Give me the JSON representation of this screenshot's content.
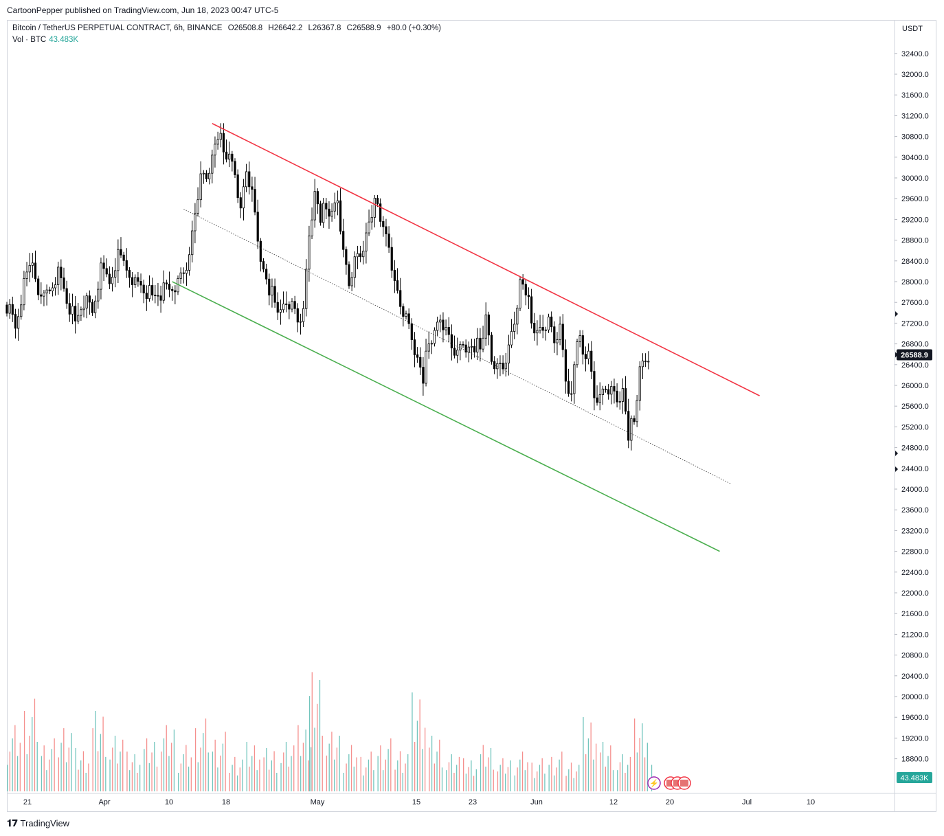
{
  "publisher_line": "CartoonPepper published on TradingView.com, Jun 18, 2023 00:47 UTC-5",
  "legend": {
    "symbol": "Bitcoin / TetherUS PERPETUAL CONTRACT, 6h, BINANCE",
    "open": "O26508.8",
    "high": "H26642.2",
    "low": "L26367.8",
    "close": "C26588.9",
    "change": "+80.0 (+0.30%)",
    "vol_label": "Vol · BTC",
    "vol_value": "43.483K"
  },
  "branding": "TradingView",
  "price_tag": "26588.9",
  "volume_tag": "43.483K",
  "currency": "USDT",
  "colors": {
    "upper_line": "#f23645",
    "lower_line": "#4caf50",
    "candle": "#000000",
    "vol_up": "#26a69a",
    "vol_down": "#ef5350"
  },
  "chart_data": {
    "type": "candlestick",
    "y_axis_ticks": [
      "32400.0",
      "32000.0",
      "31600.0",
      "31200.0",
      "30800.0",
      "30400.0",
      "30000.0",
      "29600.0",
      "29200.0",
      "28800.0",
      "28400.0",
      "28000.0",
      "27600.0",
      "27200.0",
      "26800.0",
      "26400.0",
      "26000.0",
      "25600.0",
      "25200.0",
      "24800.0",
      "24400.0",
      "24000.0",
      "23600.0",
      "23200.0",
      "22800.0",
      "22400.0",
      "22000.0",
      "21600.0",
      "21200.0",
      "20800.0",
      "20400.0",
      "20000.0",
      "19600.0",
      "19200.0",
      "18800.0"
    ],
    "x_axis_ticks": [
      "21",
      "Apr",
      "10",
      "18",
      "May",
      "15",
      "23",
      "Jun",
      "12",
      "20",
      "Jul",
      "10"
    ],
    "ylim": [
      18400,
      32800
    ],
    "price_series": [
      [
        0,
        27550
      ],
      [
        3,
        27100
      ],
      [
        6,
        27900
      ],
      [
        9,
        28400
      ],
      [
        12,
        27600
      ],
      [
        15,
        27900
      ],
      [
        18,
        28200
      ],
      [
        21,
        27700
      ],
      [
        24,
        27200
      ],
      [
        27,
        27650
      ],
      [
        30,
        27400
      ],
      [
        33,
        28200
      ],
      [
        36,
        28000
      ],
      [
        39,
        28500
      ],
      [
        42,
        28300
      ],
      [
        45,
        28000
      ],
      [
        48,
        27900
      ],
      [
        51,
        27700
      ],
      [
        54,
        27800
      ],
      [
        57,
        27850
      ],
      [
        60,
        27900
      ],
      [
        62,
        28200
      ],
      [
        64,
        28400
      ],
      [
        66,
        29400
      ],
      [
        68,
        30000
      ],
      [
        70,
        30100
      ],
      [
        72,
        30400
      ],
      [
        74,
        30900
      ],
      [
        76,
        30500
      ],
      [
        78,
        30300
      ],
      [
        80,
        30100
      ],
      [
        82,
        29300
      ],
      [
        84,
        30200
      ],
      [
        86,
        29700
      ],
      [
        88,
        28900
      ],
      [
        90,
        28200
      ],
      [
        92,
        27900
      ],
      [
        94,
        27600
      ],
      [
        96,
        27300
      ],
      [
        98,
        27600
      ],
      [
        100,
        27500
      ],
      [
        102,
        27300
      ],
      [
        104,
        27400
      ],
      [
        106,
        29000
      ],
      [
        108,
        29700
      ],
      [
        110,
        29300
      ],
      [
        112,
        29400
      ],
      [
        114,
        29200
      ],
      [
        116,
        29600
      ],
      [
        118,
        28500
      ],
      [
        120,
        28000
      ],
      [
        122,
        28400
      ],
      [
        124,
        28600
      ],
      [
        126,
        28900
      ],
      [
        128,
        29400
      ],
      [
        130,
        29500
      ],
      [
        132,
        28900
      ],
      [
        134,
        28700
      ],
      [
        136,
        27900
      ],
      [
        138,
        27600
      ],
      [
        140,
        27300
      ],
      [
        142,
        27000
      ],
      [
        144,
        26500
      ],
      [
        146,
        26200
      ],
      [
        148,
        26800
      ],
      [
        150,
        26900
      ],
      [
        152,
        27300
      ],
      [
        154,
        27000
      ],
      [
        156,
        26800
      ],
      [
        158,
        26600
      ],
      [
        160,
        26900
      ],
      [
        162,
        26700
      ],
      [
        164,
        26800
      ],
      [
        166,
        26700
      ],
      [
        168,
        27200
      ],
      [
        170,
        26500
      ],
      [
        172,
        26300
      ],
      [
        174,
        26400
      ],
      [
        176,
        26700
      ],
      [
        178,
        27300
      ],
      [
        180,
        28000
      ],
      [
        182,
        27900
      ],
      [
        184,
        27200
      ],
      [
        186,
        26900
      ],
      [
        188,
        27100
      ],
      [
        190,
        27200
      ],
      [
        192,
        26900
      ],
      [
        194,
        27100
      ],
      [
        196,
        26200
      ],
      [
        198,
        25800
      ],
      [
        200,
        27000
      ],
      [
        202,
        26600
      ],
      [
        204,
        26500
      ],
      [
        206,
        25800
      ],
      [
        208,
        25700
      ],
      [
        210,
        26000
      ],
      [
        212,
        25900
      ],
      [
        214,
        25800
      ],
      [
        216,
        25900
      ],
      [
        218,
        25100
      ],
      [
        220,
        25300
      ],
      [
        222,
        26200
      ],
      [
        224,
        26500
      ],
      [
        226,
        26589
      ]
    ],
    "volume_series": [
      [
        0,
        10
      ],
      [
        6,
        14
      ],
      [
        12,
        8
      ],
      [
        18,
        11
      ],
      [
        24,
        7
      ],
      [
        30,
        13
      ],
      [
        36,
        9
      ],
      [
        42,
        6
      ],
      [
        48,
        8
      ],
      [
        54,
        10
      ],
      [
        60,
        7
      ],
      [
        66,
        11
      ],
      [
        72,
        9
      ],
      [
        78,
        6
      ],
      [
        84,
        8
      ],
      [
        90,
        7
      ],
      [
        96,
        8
      ],
      [
        102,
        10
      ],
      [
        106,
        18
      ],
      [
        112,
        9
      ],
      [
        118,
        7
      ],
      [
        124,
        6
      ],
      [
        130,
        8
      ],
      [
        136,
        7
      ],
      [
        142,
        16
      ],
      [
        148,
        9
      ],
      [
        154,
        6
      ],
      [
        160,
        5
      ],
      [
        166,
        7
      ],
      [
        172,
        5
      ],
      [
        178,
        6
      ],
      [
        184,
        5
      ],
      [
        190,
        6
      ],
      [
        196,
        5
      ],
      [
        202,
        12
      ],
      [
        208,
        8
      ],
      [
        214,
        6
      ],
      [
        220,
        11
      ],
      [
        226,
        5
      ]
    ],
    "trendlines": [
      {
        "role": "upper",
        "from": [
          72,
          31050
        ],
        "to": [
          264,
          25800
        ],
        "color": "red"
      },
      {
        "role": "lower",
        "from": [
          58,
          28000
        ],
        "to": [
          250,
          22800
        ],
        "color": "green"
      },
      {
        "role": "mid",
        "from": [
          62,
          29400
        ],
        "to": [
          254,
          24100
        ],
        "style": "dotted"
      }
    ],
    "last_price": 26588.9,
    "last_volume": "43.483K"
  }
}
